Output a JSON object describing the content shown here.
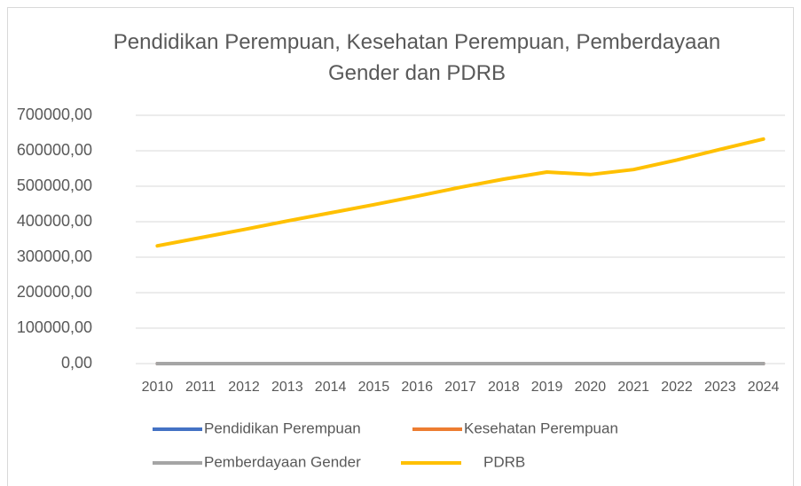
{
  "chart_data": {
    "type": "line",
    "title": "Pendidikan Perempuan, Kesehatan Perempuan, Pemberdayaan Gender dan PDRB",
    "categories": [
      "2010",
      "2011",
      "2012",
      "2013",
      "2014",
      "2015",
      "2016",
      "2017",
      "2018",
      "2019",
      "2020",
      "2021",
      "2022",
      "2023",
      "2024"
    ],
    "series": [
      {
        "name": "Pendidikan Perempuan",
        "color": "#4472c4",
        "values": [
          0,
          0,
          0,
          0,
          0,
          0,
          0,
          0,
          0,
          0,
          0,
          0,
          0,
          0,
          0
        ]
      },
      {
        "name": "Kesehatan Perempuan",
        "color": "#ed7d31",
        "values": [
          0,
          0,
          0,
          0,
          0,
          0,
          0,
          0,
          0,
          0,
          0,
          0,
          0,
          0,
          0
        ]
      },
      {
        "name": "Pemberdayaan Gender",
        "color": "#a5a5a5",
        "values": [
          0,
          0,
          0,
          0,
          0,
          0,
          0,
          0,
          0,
          0,
          0,
          0,
          0,
          0,
          0
        ]
      },
      {
        "name": "PDRB",
        "color": "#ffc000",
        "values": [
          332000,
          355000,
          378000,
          402000,
          425000,
          448000,
          472000,
          497000,
          520000,
          540000,
          533000,
          547000,
          574000,
          604000,
          633000
        ]
      }
    ],
    "ylim": [
      0,
      700000
    ],
    "yticks": [
      {
        "value": 0,
        "label": "0,00"
      },
      {
        "value": 100000,
        "label": "100000,00"
      },
      {
        "value": 200000,
        "label": "200000,00"
      },
      {
        "value": 300000,
        "label": "300000,00"
      },
      {
        "value": 400000,
        "label": "400000,00"
      },
      {
        "value": 500000,
        "label": "500000,00"
      },
      {
        "value": 600000,
        "label": "600000,00"
      },
      {
        "value": 700000,
        "label": "700000,00"
      }
    ],
    "grid": true,
    "legend": "bottom"
  }
}
